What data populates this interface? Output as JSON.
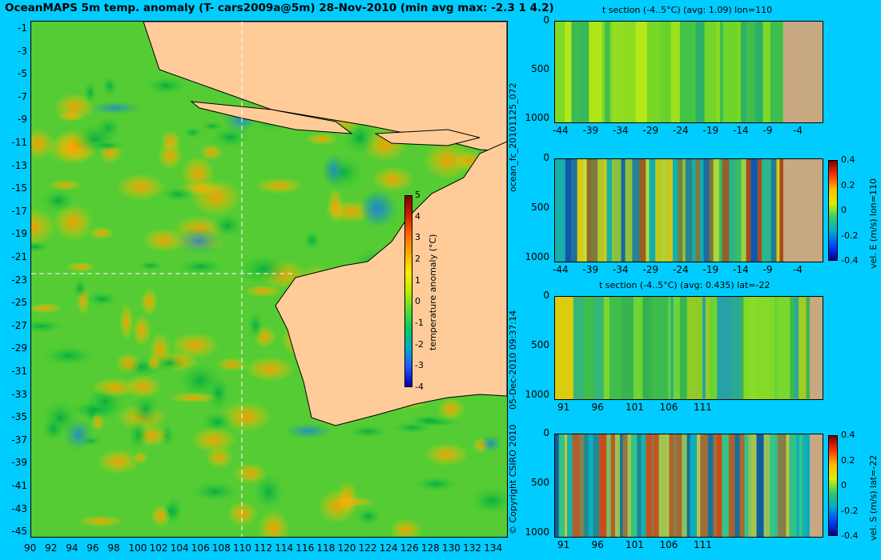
{
  "main_map": {
    "title": "OceanMAPS 5m temp. anomaly (T- cars2009a@5m) 28-Nov-2010 (min avg max: -2.3 1 4.2)",
    "lat_ticks": [
      "-1",
      "-3",
      "-5",
      "-7",
      "-9",
      "-11",
      "-13",
      "-15",
      "-17",
      "-19",
      "-21",
      "-23",
      "-25",
      "-27",
      "-29",
      "-31",
      "-33",
      "-35",
      "-37",
      "-39",
      "-41",
      "-43",
      "-45"
    ],
    "lon_ticks": [
      "90",
      "92",
      "94",
      "96",
      "98",
      "100",
      "102",
      "104",
      "106",
      "108",
      "110",
      "112",
      "114",
      "116",
      "118",
      "120",
      "122",
      "124",
      "126",
      "128",
      "130",
      "132",
      "134"
    ],
    "colorbar": {
      "label": "temperature anomaly (°C)",
      "ticks": [
        "5",
        "4",
        "3",
        "2",
        "1",
        "0",
        "-1",
        "-2",
        "-3",
        "-4"
      ]
    },
    "crosshair": {
      "lon": 110,
      "lat": -22
    }
  },
  "side_labels": {
    "run_id": "ocean_fc_20101125_072",
    "timestamp": "05-Dec-2010 09:37:14",
    "copyright": "© Copyright CSIRO 2010"
  },
  "panels": [
    {
      "title": "t section (-4..5°C) (avg: 1.09) lon=110",
      "x_ticks": [
        "-44",
        "-39",
        "-34",
        "-29",
        "-24",
        "-19",
        "-14",
        "-9",
        "-4"
      ],
      "y_ticks": [
        "0",
        "500",
        "1000"
      ]
    },
    {
      "title": "",
      "x_ticks": [
        "-44",
        "-39",
        "-34",
        "-29",
        "-24",
        "-19",
        "-14",
        "-9",
        "-4"
      ],
      "y_ticks": [
        "0",
        "500",
        "1000"
      ],
      "colorbar": {
        "label": "vel. E (m/s) lon=110",
        "ticks": [
          "0.4",
          "0.2",
          "0",
          "-0.2",
          "-0.4"
        ]
      }
    },
    {
      "title": "t section (-4..5°C) (avg: 0.435) lat=-22",
      "x_ticks": [
        "91",
        "96",
        "101",
        "106",
        "111"
      ],
      "y_ticks": [
        "0",
        "500",
        "1000"
      ]
    },
    {
      "title": "",
      "x_ticks": [
        "91",
        "96",
        "101",
        "106",
        "111"
      ],
      "y_ticks": [
        "0",
        "500",
        "1000"
      ],
      "colorbar": {
        "label": "vel. S (m/s) lat=-22",
        "ticks": [
          "0.4",
          "0.2",
          "0",
          "-0.2",
          "-0.4"
        ]
      }
    }
  ]
}
